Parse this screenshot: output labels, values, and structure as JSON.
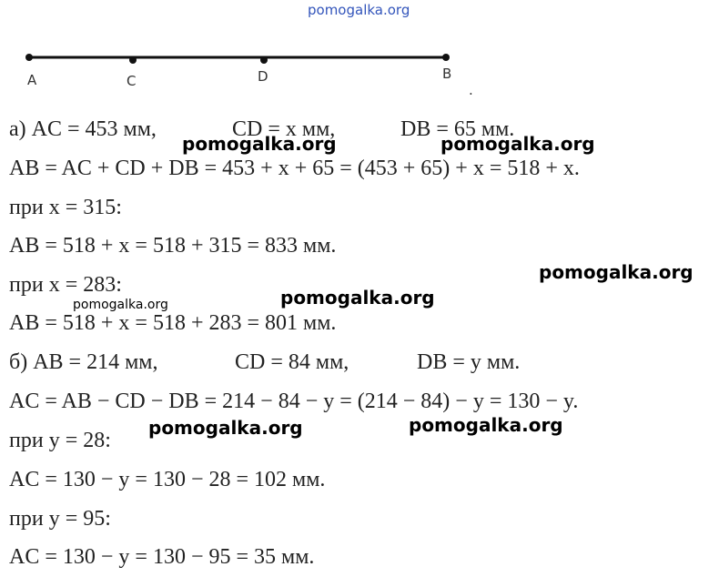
{
  "watermark_top": "pomogalka.org",
  "watermarks": [
    "pomogalka.org",
    "pomogalka.org",
    "pomogalka.org",
    "pomogalka.org",
    "pomogalka.org",
    "pomogalka.org",
    "pomogalka.org"
  ],
  "diagram": {
    "points": [
      "A",
      "C",
      "D",
      "B"
    ],
    "dot": "."
  },
  "lines": [
    [
      "а) AC = 453 мм,",
      "CD = x мм,",
      "DB = 65 мм."
    ],
    [
      "AB = AC + CD + DB = 453 + x + 65 = (453 + 65) + x = 518 + x."
    ],
    [
      "при x = 315:"
    ],
    [
      "AB = 518 + x = 518 + 315 = 833 мм."
    ],
    [
      "при x = 283:"
    ],
    [
      "AB = 518 + x = 518 + 283 = 801 мм."
    ],
    [
      "б) AB = 214 мм,",
      "CD = 84 мм,",
      "DB = y мм."
    ],
    [
      "AC = AB − CD − DB = 214 − 84 − y = (214 − 84) − y = 130 − y."
    ],
    [
      "при y = 28:"
    ],
    [
      "AC = 130 − y = 130 − 28 = 102 мм."
    ],
    [
      "при y = 95:"
    ],
    [
      "AC = 130 − y = 130 − 95 = 35 мм."
    ]
  ]
}
